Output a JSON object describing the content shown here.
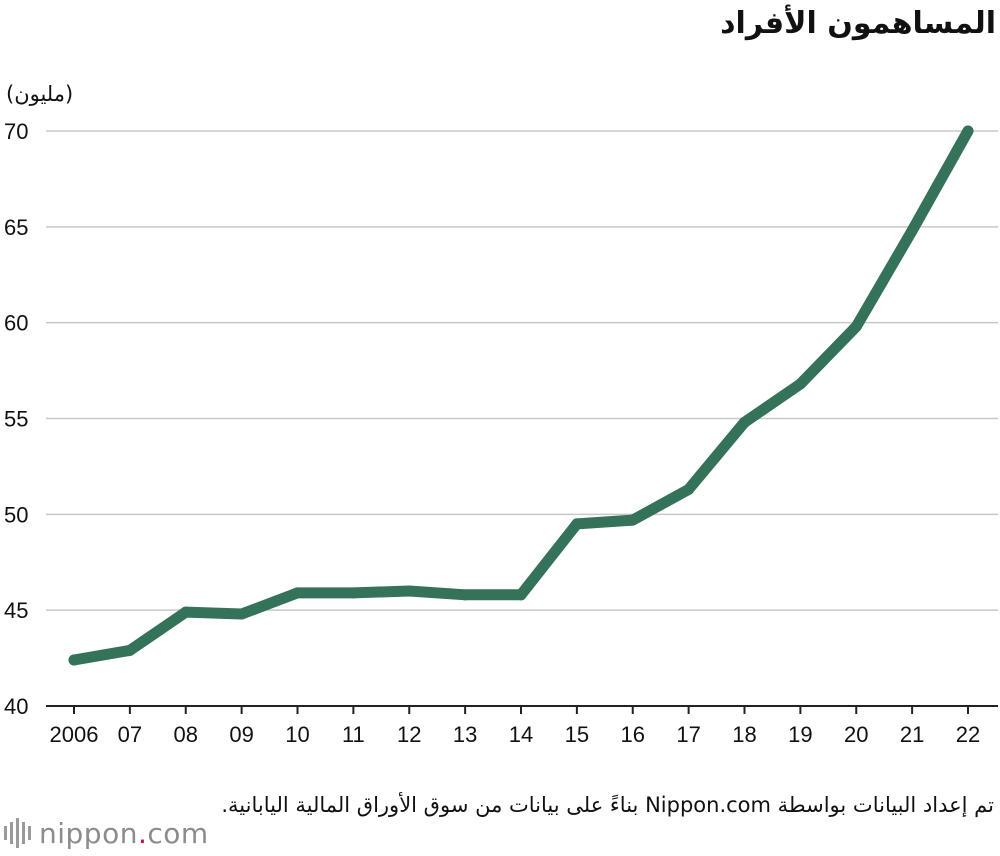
{
  "chart_data": {
    "type": "line",
    "title": "المساهمون الأفراد",
    "ylabel": "(مليون)",
    "xlabel": "",
    "categories": [
      "2006",
      "07",
      "08",
      "09",
      "10",
      "11",
      "12",
      "13",
      "14",
      "15",
      "16",
      "17",
      "18",
      "19",
      "20",
      "21",
      "22"
    ],
    "series": [
      {
        "values": [
          42.4,
          42.9,
          44.9,
          44.8,
          45.9,
          45.9,
          46.0,
          45.8,
          45.8,
          49.5,
          49.7,
          51.3,
          54.8,
          56.8,
          59.8,
          64.8,
          70.0
        ]
      }
    ],
    "ylim": [
      40,
      70
    ],
    "yticks": [
      40,
      45,
      50,
      55,
      60,
      65,
      70
    ],
    "grid": true,
    "line_color": "#347259",
    "grid_color": "#c8c8c8"
  },
  "footer": {
    "source": "تم إعداد البيانات بواسطة Nippon.com بناءً على بيانات من سوق الأوراق المالية اليابانية.",
    "brand_name": "nippon",
    "brand_dot": ".",
    "brand_tld": "com"
  }
}
